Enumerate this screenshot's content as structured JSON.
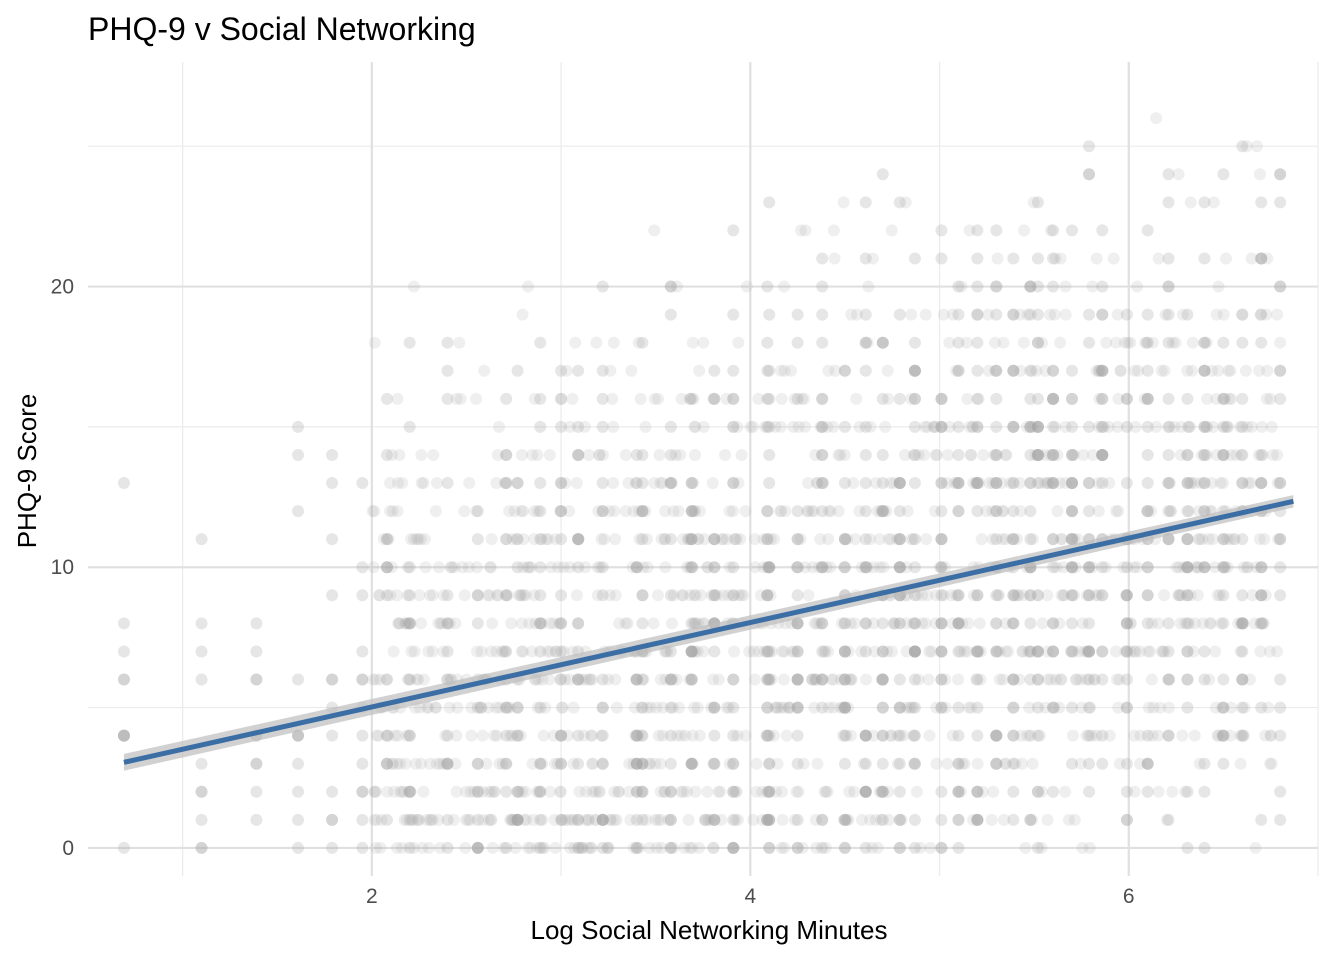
{
  "chart_data": {
    "type": "scatter",
    "title": "PHQ-9 v Social Networking",
    "xlabel": "Log Social Networking Minutes",
    "ylabel": "PHQ-9 Score",
    "xlim": [
      0.5,
      7.0
    ],
    "ylim": [
      -1.0,
      28.0
    ],
    "x_ticks": [
      2,
      4,
      6
    ],
    "x_tick_labels": [
      "2",
      "4",
      "6"
    ],
    "x_minor_ticks": [
      1,
      3,
      5,
      7
    ],
    "y_ticks": [
      0,
      10,
      20
    ],
    "y_tick_labels": [
      "0",
      "10",
      "20"
    ],
    "y_minor_ticks": [
      5,
      15,
      25
    ],
    "grid": true,
    "legend": "none",
    "points_color": "#a6a6a6",
    "fit_color": "#3a6ea5",
    "band_color": "#bdbdbd",
    "trend_line": {
      "method": "linear",
      "x": [
        0.69,
        6.87
      ],
      "y": [
        3.05,
        12.35
      ],
      "ci_halfwidth_at_ends": [
        0.3,
        0.22
      ]
    },
    "scatter_sample": {
      "description": "dense cloud; columns of points at frequent x values",
      "column_x": [
        0.69,
        1.1,
        1.39,
        1.61,
        1.79,
        1.95,
        2.08,
        2.2,
        2.4,
        2.56,
        2.71,
        2.77,
        2.89,
        3.0,
        3.09,
        3.22,
        3.4,
        3.43,
        3.58,
        3.69,
        3.81,
        3.91,
        4.09,
        4.1,
        4.25,
        4.38,
        4.5,
        4.61,
        4.7,
        4.79,
        4.87,
        5.01,
        5.1,
        5.2,
        5.3,
        5.39,
        5.48,
        5.52,
        5.6,
        5.7,
        5.79,
        5.86,
        5.99,
        6.1,
        6.21,
        6.31,
        6.4,
        6.5,
        6.6,
        6.7,
        6.8
      ]
    }
  }
}
